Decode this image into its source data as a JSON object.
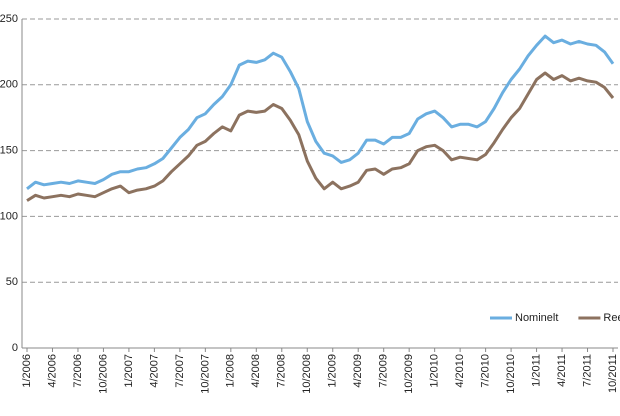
{
  "chart_data": {
    "type": "line",
    "categories": [
      "1/2006",
      null,
      null,
      "4/2006",
      null,
      null,
      "7/2006",
      null,
      null,
      "10/2006",
      null,
      null,
      "1/2007",
      null,
      null,
      "4/2007",
      null,
      null,
      "7/2007",
      null,
      null,
      "10/2007",
      null,
      null,
      "1/2008",
      null,
      null,
      "4/2008",
      null,
      null,
      "7/2008",
      null,
      null,
      "10/2008",
      null,
      null,
      "1/2009",
      null,
      null,
      "4/2009",
      null,
      null,
      "7/2009",
      null,
      null,
      "10/2009",
      null,
      null,
      "1/2010",
      null,
      null,
      "4/2010",
      null,
      null,
      "7/2010",
      null,
      null,
      "10/2010",
      null,
      null,
      "1/2011",
      null,
      null,
      "4/2011",
      null,
      null,
      "7/2011",
      null,
      null,
      "10/2011"
    ],
    "series": [
      {
        "name": "Nominelt",
        "color": "#6aaee0",
        "values": [
          121,
          126,
          124,
          125,
          126,
          125,
          127,
          126,
          125,
          128,
          132,
          134,
          134,
          136,
          137,
          140,
          144,
          152,
          160,
          166,
          175,
          178,
          185,
          191,
          200,
          215,
          218,
          217,
          219,
          224,
          221,
          210,
          197,
          172,
          157,
          148,
          146,
          141,
          143,
          148,
          158,
          158,
          155,
          160,
          160,
          163,
          174,
          178,
          180,
          175,
          168,
          170,
          170,
          168,
          172,
          182,
          194,
          204,
          212,
          222,
          230,
          237,
          232,
          234,
          231,
          233,
          231,
          230,
          225,
          216
        ]
      },
      {
        "name": "Reelt",
        "color": "#8c725f",
        "values": [
          112,
          116,
          114,
          115,
          116,
          115,
          117,
          116,
          115,
          118,
          121,
          123,
          118,
          120,
          121,
          123,
          127,
          134,
          140,
          146,
          154,
          157,
          163,
          168,
          165,
          177,
          180,
          179,
          180,
          185,
          182,
          173,
          162,
          142,
          129,
          121,
          126,
          121,
          123,
          126,
          135,
          136,
          132,
          136,
          137,
          140,
          150,
          153,
          154,
          150,
          143,
          145,
          144,
          143,
          147,
          156,
          166,
          175,
          182,
          193,
          204,
          209,
          204,
          207,
          203,
          205,
          203,
          202,
          198,
          190
        ]
      }
    ],
    "ylim": [
      0,
      250
    ],
    "yticks": [
      0,
      50,
      100,
      150,
      200,
      250
    ],
    "grid": true,
    "legend": "lower right"
  }
}
